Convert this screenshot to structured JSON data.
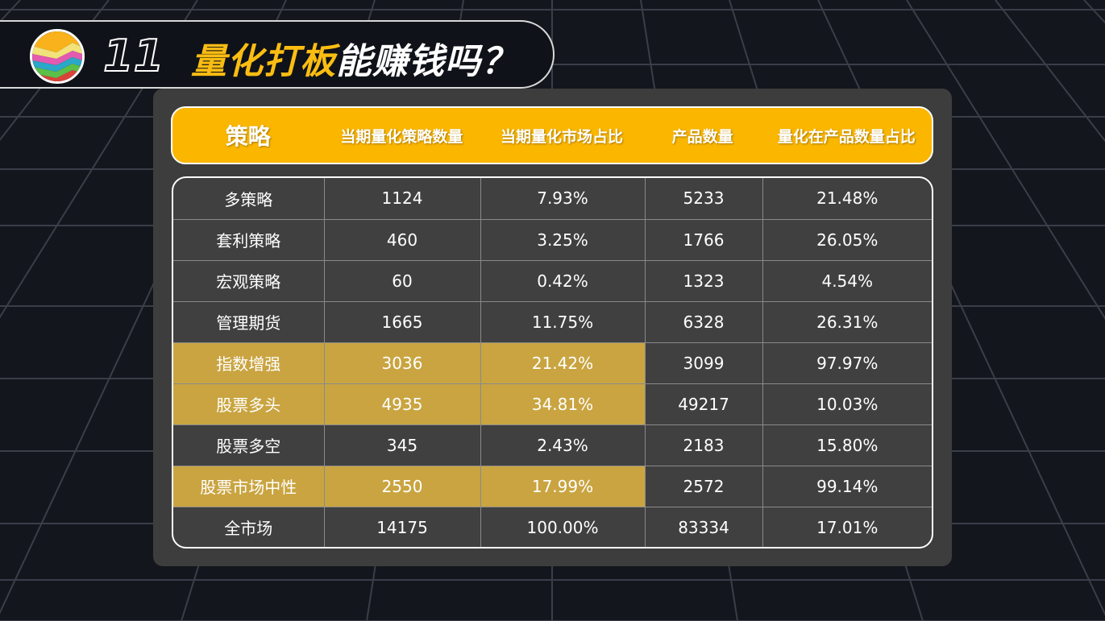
{
  "header": {
    "number": "11",
    "title_highlight": "量化打板",
    "title_rest": "能赚钱吗？"
  },
  "table": {
    "columns": [
      "策略",
      "当期量化策略数量",
      "当期量化市场占比",
      "产品数量",
      "量化在产品数量占比"
    ],
    "rows": [
      {
        "cells": [
          "多策略",
          "1124",
          "7.93%",
          "5233",
          "21.48%"
        ],
        "highlight": false
      },
      {
        "cells": [
          "套利策略",
          "460",
          "3.25%",
          "1766",
          "26.05%"
        ],
        "highlight": false
      },
      {
        "cells": [
          "宏观策略",
          "60",
          "0.42%",
          "1323",
          "4.54%"
        ],
        "highlight": false
      },
      {
        "cells": [
          "管理期货",
          "1665",
          "11.75%",
          "6328",
          "26.31%"
        ],
        "highlight": false
      },
      {
        "cells": [
          "指数增强",
          "3036",
          "21.42%",
          "3099",
          "97.97%"
        ],
        "highlight": true
      },
      {
        "cells": [
          "股票多头",
          "4935",
          "34.81%",
          "49217",
          "10.03%"
        ],
        "highlight": true
      },
      {
        "cells": [
          "股票多空",
          "345",
          "2.43%",
          "2183",
          "15.80%"
        ],
        "highlight": false
      },
      {
        "cells": [
          "股票市场中性",
          "2550",
          "17.99%",
          "2572",
          "99.14%"
        ],
        "highlight": true
      },
      {
        "cells": [
          "全市场",
          "14175",
          "100.00%",
          "83334",
          "17.01%"
        ],
        "highlight": false
      }
    ]
  },
  "colors": {
    "accent": "#fbb600",
    "highlight": "#c9a440",
    "panel": "#3d3d3d"
  }
}
